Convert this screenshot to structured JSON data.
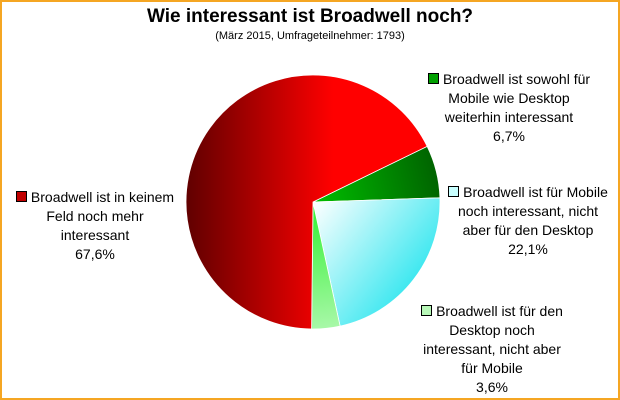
{
  "chart_data": {
    "type": "pie",
    "title": "Wie interessant ist Broadwell noch?",
    "subtitle": "(März 2015, Umfrageteilnehmer: 1793)",
    "slices": [
      {
        "lines": [
          "Broadwell ist sowohl für",
          "Mobile wie Desktop",
          "weiterhin interessant"
        ],
        "value": 6.7,
        "percent_label": "6,7%",
        "color": "#00c000",
        "color_dark": "#006400"
      },
      {
        "lines": [
          "Broadwell ist für Mobile",
          "noch interessant, nicht",
          "aber für den Desktop"
        ],
        "value": 22.1,
        "percent_label": "22,1%",
        "color": "#40e8f0",
        "color_dark": "#40e8f0"
      },
      {
        "lines": [
          "Broadwell ist für den",
          "Desktop noch",
          "interessant, nicht aber",
          "für Mobile"
        ],
        "value": 3.6,
        "percent_label": "3,6%",
        "color": "#30f030",
        "color_dark": "#a8f8a8"
      },
      {
        "lines": [
          "Broadwell ist in keinem",
          "Feld noch mehr",
          "interessant"
        ],
        "value": 67.6,
        "percent_label": "67,6%",
        "color": "#ff0000",
        "color_dark": "#600000"
      }
    ]
  }
}
